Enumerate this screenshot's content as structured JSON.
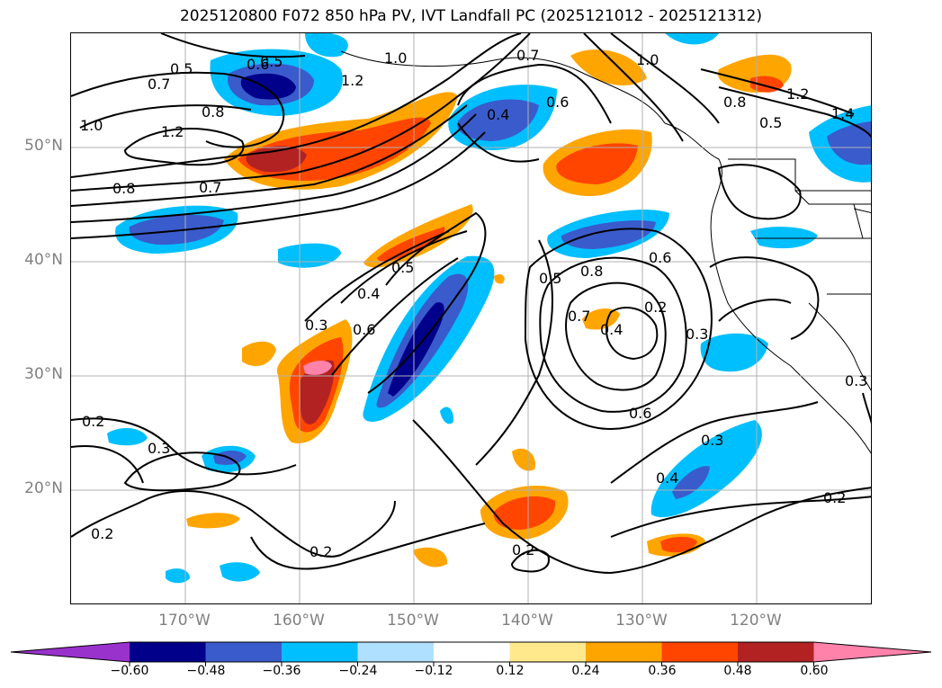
{
  "title": "2025120800 F072 850 hPa PV, IVT Landfall PC (2025121012 - 2025121312)",
  "lat_labels": [
    "50°N",
    "40°N",
    "30°N",
    "20°N"
  ],
  "lon_labels": [
    "170°W",
    "160°W",
    "150°W",
    "140°W",
    "130°W",
    "120°W"
  ],
  "colorbar": {
    "colors": [
      "#9932CC",
      "#00008B",
      "#3A5BCC",
      "#00BFFF",
      "#B0E0FF",
      "#FFFFFF",
      "#FFE98C",
      "#FFA500",
      "#FF4500",
      "#B22222",
      "#FF82AB"
    ],
    "ticks": [
      "−0.60",
      "−0.48",
      "−0.36",
      "−0.24",
      "−0.12",
      "0.12",
      "0.24",
      "0.36",
      "0.48",
      "0.60"
    ]
  },
  "contour_labels": [
    "0.5",
    "0.6",
    "1.2",
    "1.0",
    "0.7",
    "0.6",
    "1.0",
    "1.2",
    "1.4",
    "0.7",
    "0.8",
    "0.4",
    "0.8",
    "0.5",
    "1.0",
    "1.2",
    "0.7",
    "0.8",
    "0.5",
    "0.4",
    "0.5",
    "0.6",
    "0.8",
    "0.3",
    "0.6",
    "0.7",
    "0.2",
    "0.3",
    "0.4",
    "0.5",
    "0.6",
    "0.2",
    "0.3",
    "0.2",
    "0.2",
    "0.3",
    "0.4",
    "0.2",
    "0.3",
    "0.2"
  ]
}
